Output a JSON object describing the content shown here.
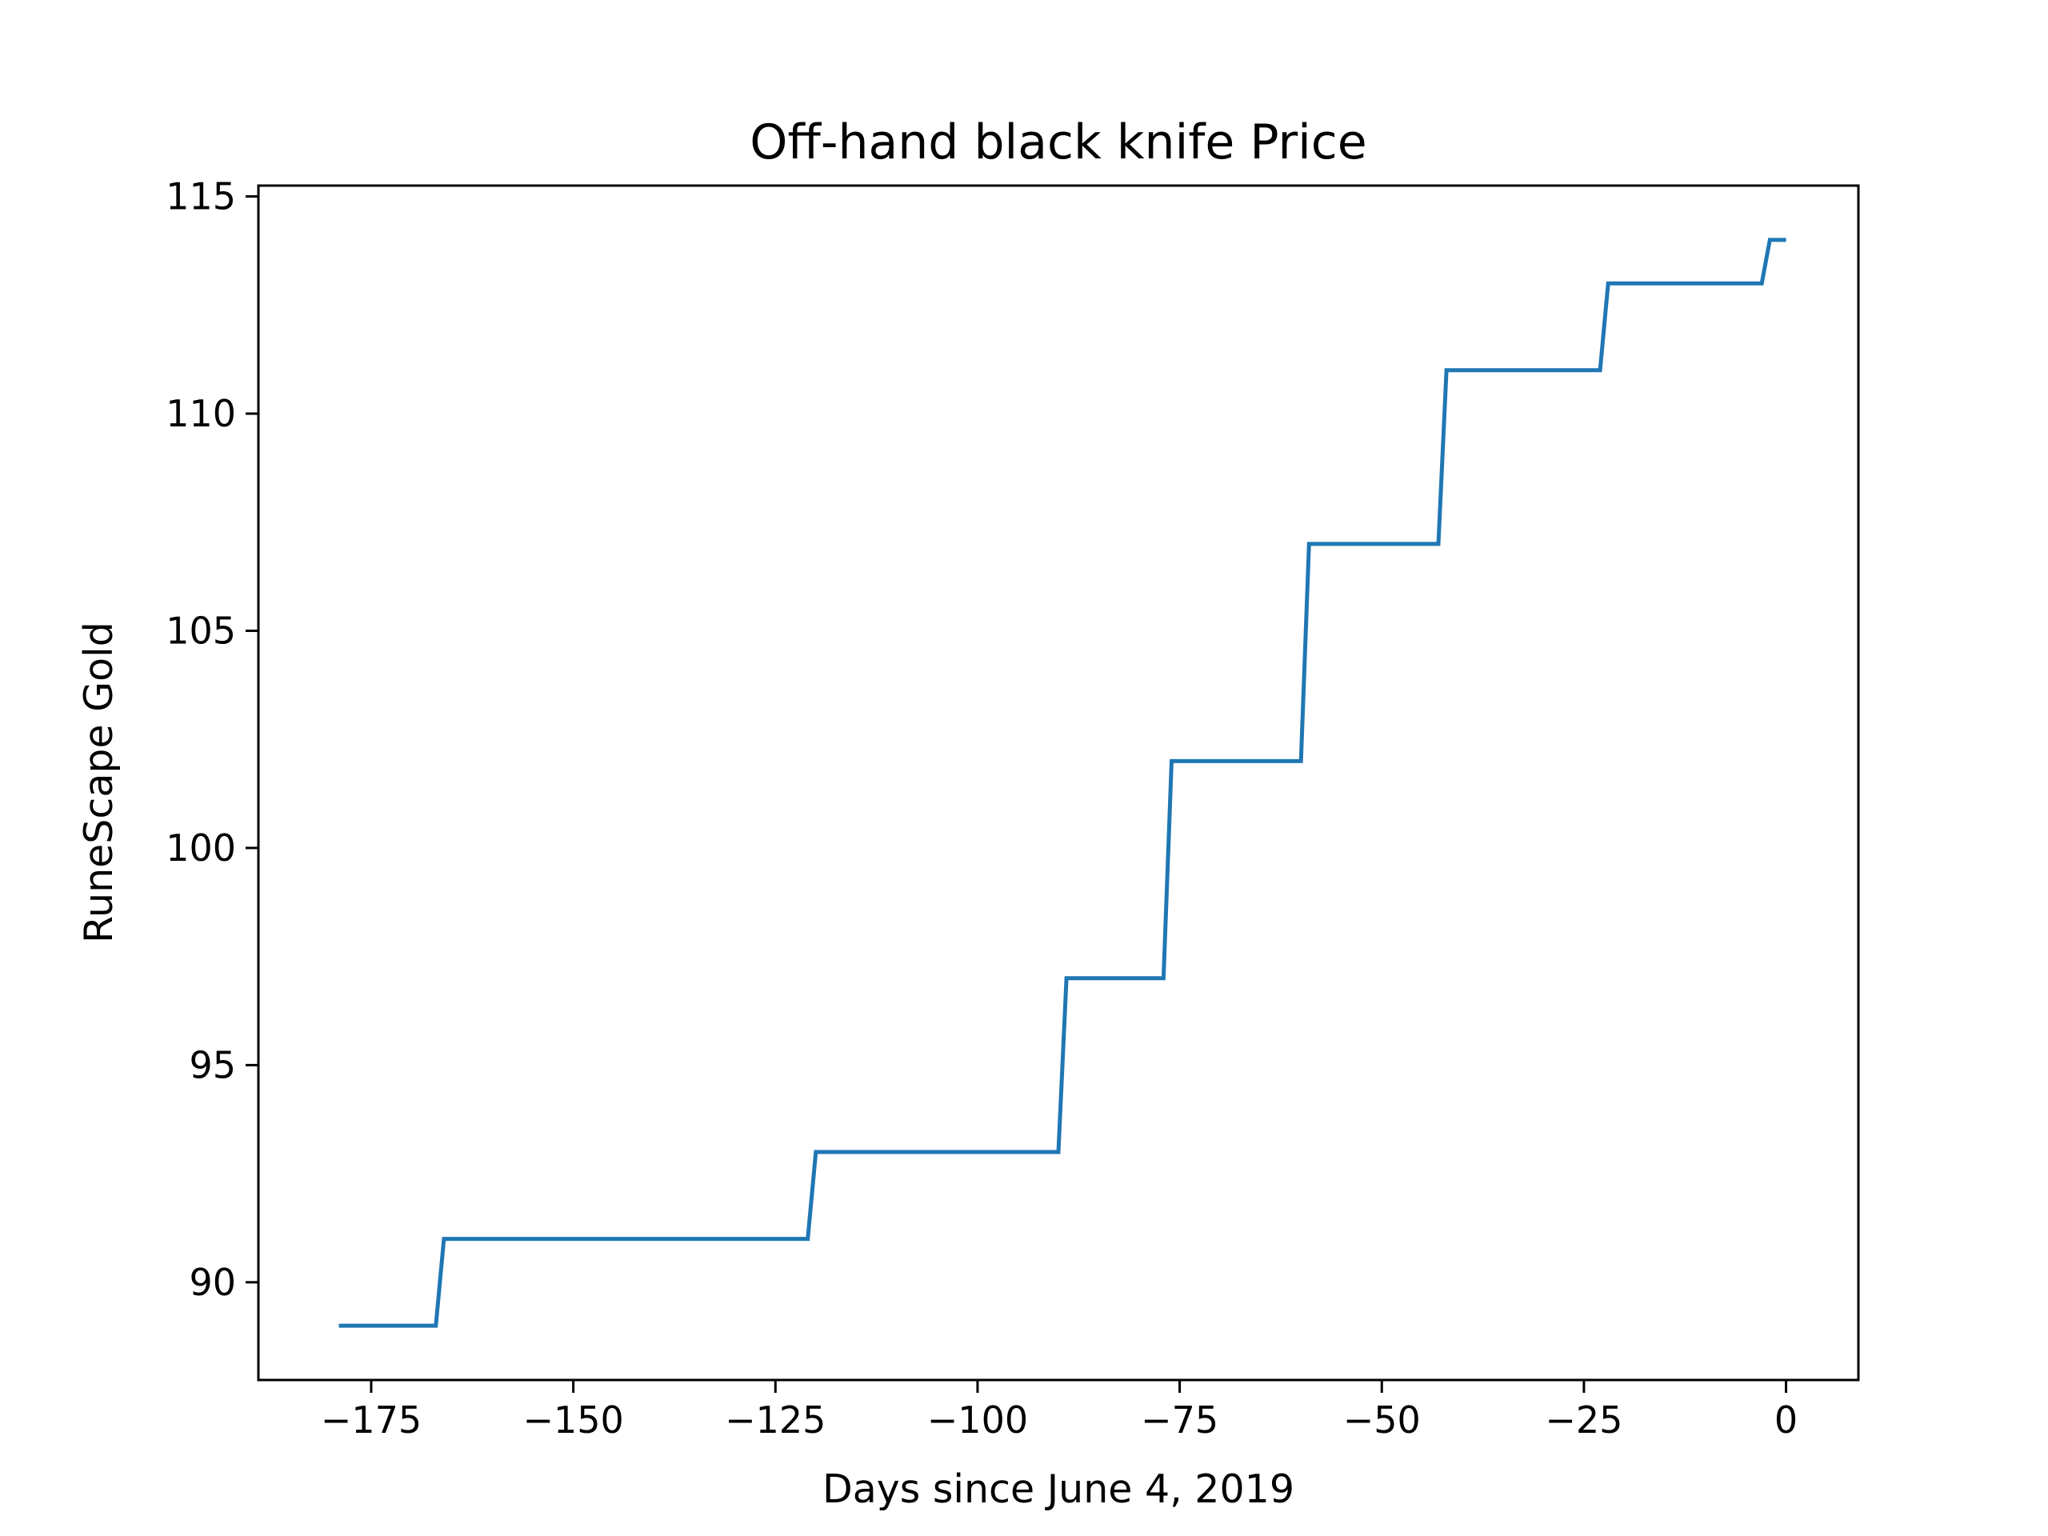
{
  "chart_data": {
    "type": "line",
    "title": "Off-hand black knife Price",
    "xlabel": "Days since June 4, 2019",
    "ylabel": "RuneScape Gold",
    "xlim": [
      -188.95,
      8.95
    ],
    "ylim": [
      87.75,
      115.25
    ],
    "xticks": [
      -175,
      -150,
      -125,
      -100,
      -75,
      -50,
      -25,
      0
    ],
    "xtick_labels": [
      "−175",
      "−150",
      "−125",
      "−100",
      "−75",
      "−50",
      "−25",
      "0"
    ],
    "yticks": [
      90,
      95,
      100,
      105,
      110,
      115
    ],
    "ytick_labels": [
      "90",
      "95",
      "100",
      "105",
      "110",
      "115"
    ],
    "grid": false,
    "series": [
      {
        "color": "#1f77b4",
        "x": [
          -179,
          -167,
          -166,
          -121,
          -120,
          -90,
          -89,
          -77,
          -76,
          -60,
          -59,
          -43,
          -42,
          -23,
          -22,
          -3,
          -2,
          0
        ],
        "y": [
          89,
          89,
          91,
          91,
          93,
          93,
          97,
          97,
          102,
          102,
          107,
          107,
          111,
          111,
          113,
          113,
          114,
          114
        ]
      }
    ]
  }
}
